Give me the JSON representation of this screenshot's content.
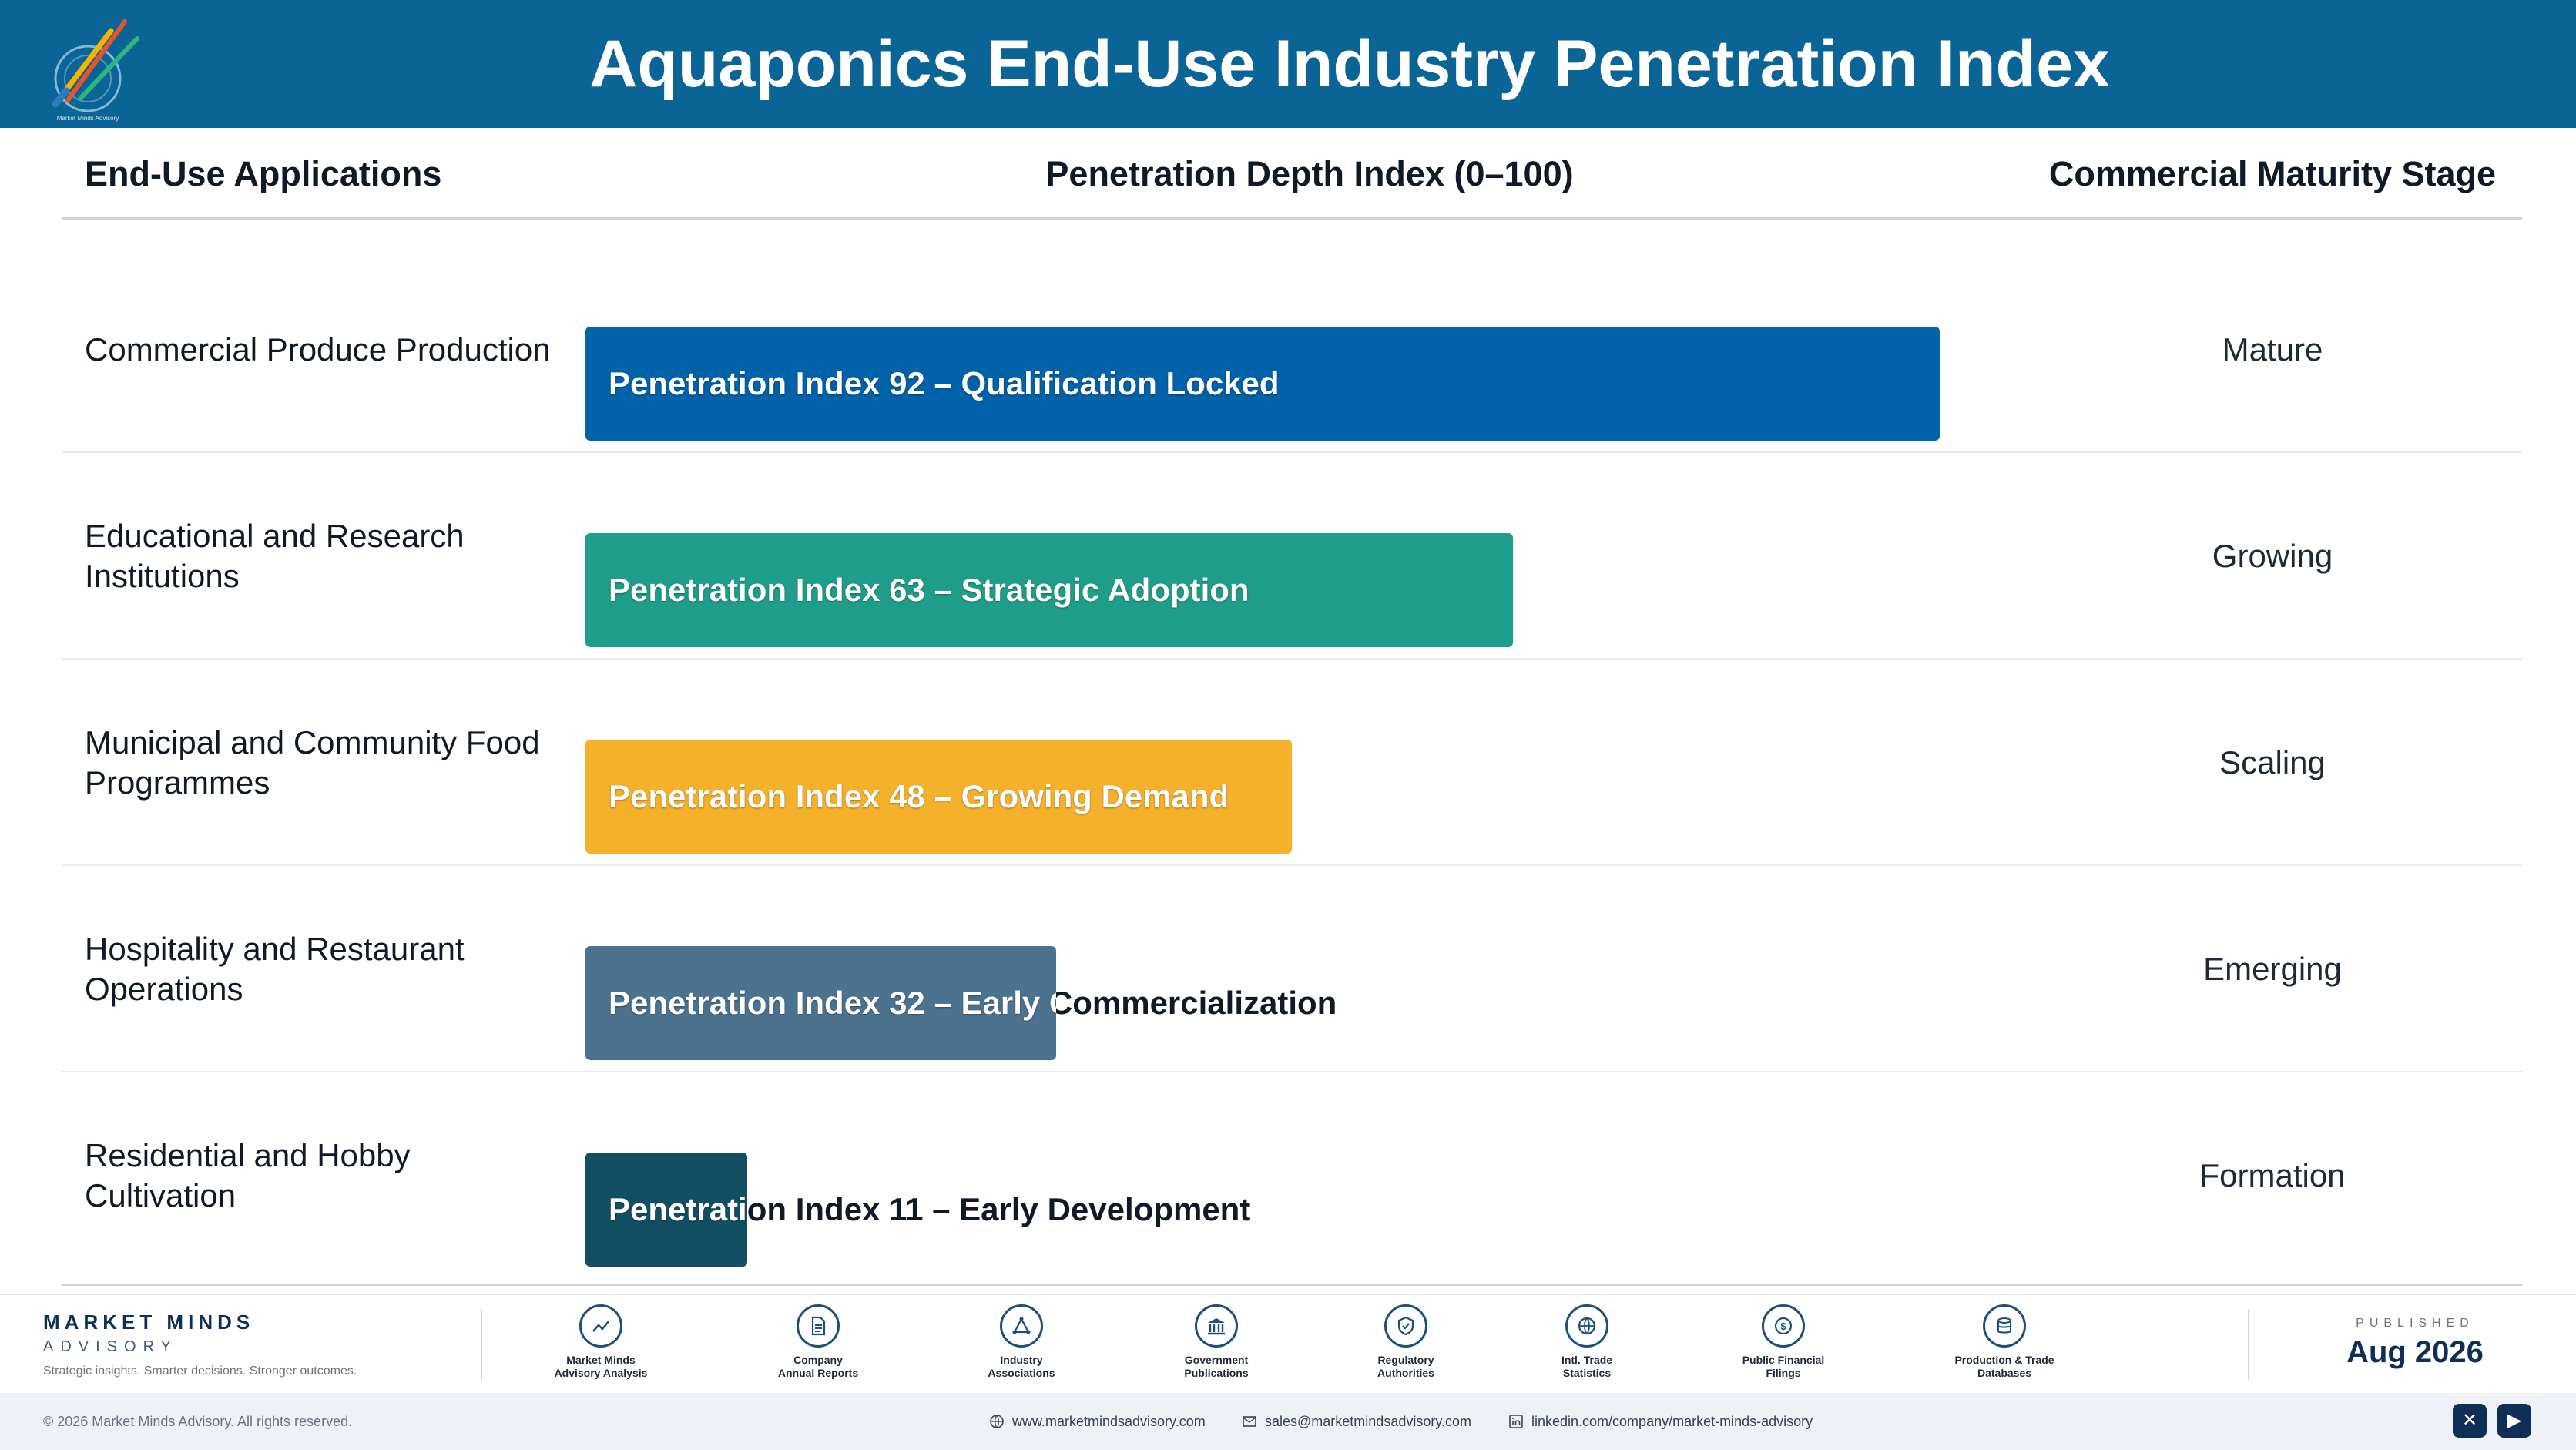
{
  "header": {
    "title": "Aquaponics End-Use Industry Penetration Index",
    "logo_caption": "Market Minds Advisory"
  },
  "columns": {
    "applications": "End-Use Applications",
    "index": "Penetration Depth Index (0–100)",
    "stage": "Commercial Maturity Stage"
  },
  "chart_data": {
    "type": "bar",
    "orientation": "horizontal",
    "title": "Aquaponics End-Use Industry Penetration Index",
    "xlabel": "Penetration Depth Index (0–100)",
    "xlim": [
      0,
      100
    ],
    "grid": false,
    "categories": [
      "Commercial Produce Production",
      "Educational and Research Institutions",
      "Municipal and Community Food Programmes",
      "Hospitality and Restaurant Operations",
      "Residential and Hobby Cultivation"
    ],
    "values": [
      92,
      63,
      48,
      32,
      11
    ],
    "bar_labels": [
      "Penetration Index 92 – Qualification Locked",
      "Penetration Index 63 – Strategic Adoption",
      "Penetration Index 48 – Growing Demand",
      "Penetration Index 32 – Early Commercialization",
      "Penetration Index 11 – Early Development"
    ],
    "stages": [
      "Mature",
      "Growing",
      "Scaling",
      "Emerging",
      "Formation"
    ],
    "colors": [
      "#0062a8",
      "#1e9e8a",
      "#f6b12b",
      "#4b738f",
      "#124f63"
    ]
  },
  "footer": {
    "brand_name": "MARKET MINDS",
    "brand_sub": "ADVISORY",
    "tagline": "Strategic insights. Smarter decisions. Stronger outcomes.",
    "sources": [
      {
        "line1": "Market Minds",
        "line2": "Advisory Analysis",
        "icon": "chart-line-icon"
      },
      {
        "line1": "Company",
        "line2": "Annual Reports",
        "icon": "document-icon"
      },
      {
        "line1": "Industry",
        "line2": "Associations",
        "icon": "network-icon"
      },
      {
        "line1": "Government",
        "line2": "Publications",
        "icon": "government-building-icon"
      },
      {
        "line1": "Regulatory",
        "line2": "Authorities",
        "icon": "shield-check-icon"
      },
      {
        "line1": "Intl. Trade",
        "line2": "Statistics",
        "icon": "globe-icon"
      },
      {
        "line1": "Public Financial",
        "line2": "Filings",
        "icon": "coin-icon"
      },
      {
        "line1": "Production & Trade",
        "line2": "Databases",
        "icon": "database-icon"
      }
    ],
    "published_label": "PUBLISHED",
    "published_date": "Aug 2026"
  },
  "subfooter": {
    "copyright": "© 2026 Market Minds Advisory. All rights reserved.",
    "website": "www.marketmindsadvisory.com",
    "email": "sales@marketmindsadvisory.com",
    "linkedin": "linkedin.com/company/market-minds-advisory",
    "social": [
      "x-icon",
      "youtube-icon"
    ]
  }
}
